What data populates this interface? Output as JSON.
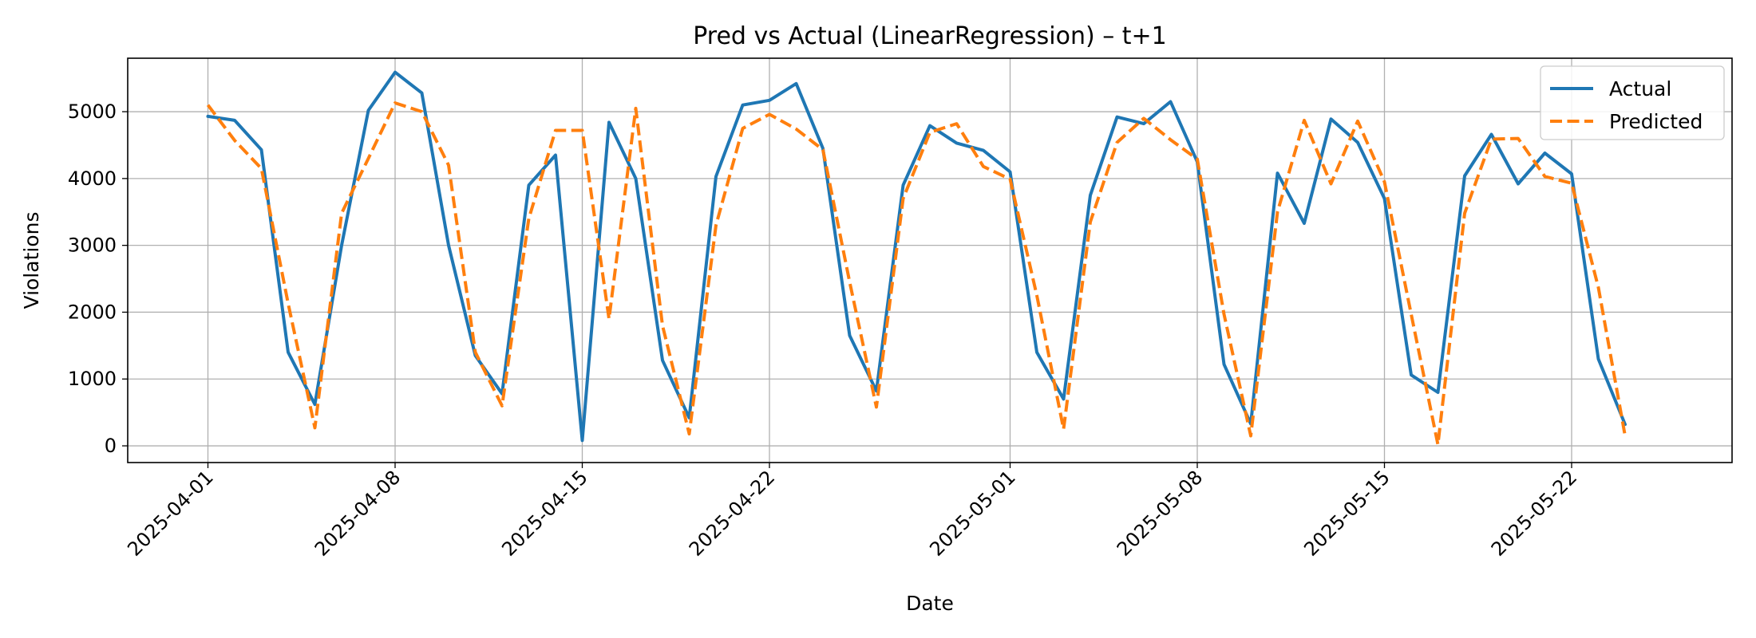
{
  "chart_data": {
    "type": "line",
    "title": "Pred vs Actual (LinearRegression) – t+1",
    "xlabel": "Date",
    "ylabel": "Violations",
    "x_start": "2025-04-01",
    "x_end": "2025-05-24",
    "xlim": [
      "2025-03-29",
      "2025-05-28"
    ],
    "ylim": [
      -250,
      5800
    ],
    "x_ticks": [
      "2025-04-01",
      "2025-04-08",
      "2025-04-15",
      "2025-04-22",
      "2025-05-01",
      "2025-05-08",
      "2025-05-15",
      "2025-05-22"
    ],
    "y_ticks": [
      0,
      1000,
      2000,
      3000,
      4000,
      5000
    ],
    "grid": true,
    "legend_position": "top-right",
    "colors": {
      "actual": "#1f77b4",
      "predicted": "#ff7f0e"
    },
    "series": [
      {
        "name": "Actual",
        "style": "solid",
        "values": [
          4930,
          4870,
          4430,
          1400,
          620,
          3000,
          5020,
          5590,
          5280,
          3000,
          1350,
          780,
          3900,
          4350,
          80,
          4840,
          4000,
          1280,
          420,
          4030,
          5100,
          5170,
          5420,
          4450,
          1650,
          820,
          3900,
          4790,
          4530,
          4420,
          4100,
          1400,
          700,
          3750,
          4920,
          4820,
          5150,
          4250,
          1220,
          330,
          4080,
          3330,
          4890,
          4540,
          3700,
          1060,
          800,
          4040,
          4660,
          3920,
          4380,
          4070,
          1300,
          320
        ]
      },
      {
        "name": "Predicted",
        "style": "dashed",
        "values": [
          5100,
          4570,
          4150,
          2130,
          270,
          3480,
          4300,
          5130,
          5000,
          4200,
          1400,
          600,
          3400,
          4720,
          4720,
          1900,
          5050,
          1800,
          180,
          3300,
          4750,
          4960,
          4740,
          4430,
          2450,
          580,
          3700,
          4690,
          4820,
          4180,
          3990,
          2250,
          250,
          3350,
          4540,
          4900,
          4580,
          4290,
          1970,
          150,
          3500,
          4870,
          3920,
          4860,
          3950,
          1970,
          20,
          3480,
          4590,
          4600,
          4030,
          3930,
          2370,
          150
        ]
      }
    ]
  }
}
